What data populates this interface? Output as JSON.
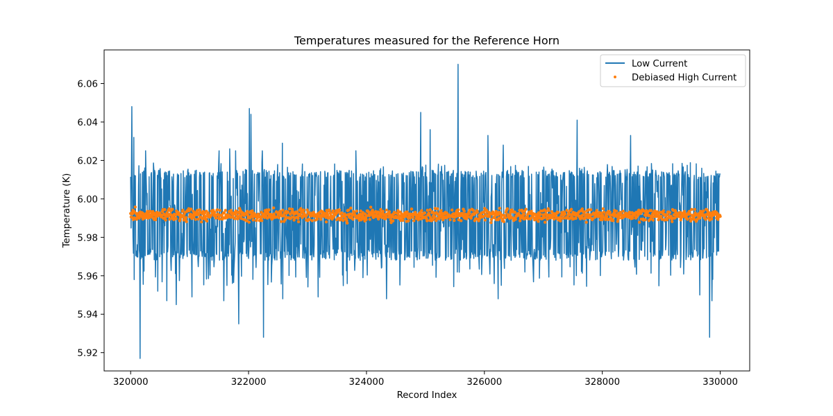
{
  "chart_data": {
    "type": "line",
    "title": "Temperatures measured for the Reference Horn",
    "xlabel": "Record Index",
    "ylabel": "Temperature (K)",
    "xlim": [
      319550,
      330500
    ],
    "ylim": [
      5.9105,
      6.0775
    ],
    "x_ticks": [
      320000,
      322000,
      324000,
      326000,
      328000,
      330000
    ],
    "x_tick_labels": [
      "320000",
      "322000",
      "324000",
      "326000",
      "328000",
      "330000"
    ],
    "y_ticks": [
      5.92,
      5.94,
      5.96,
      5.98,
      6.0,
      6.02,
      6.04,
      6.06
    ],
    "y_tick_labels": [
      "5.92",
      "5.94",
      "5.96",
      "5.98",
      "6.00",
      "6.02",
      "6.04",
      "6.06"
    ],
    "grid": false,
    "legend": {
      "position": "top-right",
      "entries": [
        "Low Current",
        "Debiased High Current"
      ]
    },
    "series": [
      {
        "name": "Low Current",
        "style": "line",
        "color": "#1f77b4",
        "x_range": [
          320000,
          330000
        ],
        "mean": 5.9995,
        "typical_range": [
          5.968,
          6.015
        ],
        "spikes": [
          {
            "x": 320020,
            "y": 6.048
          },
          {
            "x": 320050,
            "y": 6.032
          },
          {
            "x": 320250,
            "y": 6.025
          },
          {
            "x": 321500,
            "y": 6.025
          },
          {
            "x": 321680,
            "y": 6.026
          },
          {
            "x": 321780,
            "y": 6.025
          },
          {
            "x": 322010,
            "y": 6.047
          },
          {
            "x": 322040,
            "y": 6.044
          },
          {
            "x": 322230,
            "y": 6.025
          },
          {
            "x": 322570,
            "y": 6.029
          },
          {
            "x": 323820,
            "y": 6.025
          },
          {
            "x": 324920,
            "y": 6.045
          },
          {
            "x": 325080,
            "y": 6.036
          },
          {
            "x": 325550,
            "y": 6.07
          },
          {
            "x": 326060,
            "y": 6.033
          },
          {
            "x": 326320,
            "y": 6.028
          },
          {
            "x": 327570,
            "y": 6.041
          },
          {
            "x": 328480,
            "y": 6.033
          },
          {
            "x": 320060,
            "y": 5.958
          },
          {
            "x": 320160,
            "y": 5.917
          },
          {
            "x": 320460,
            "y": 5.952
          },
          {
            "x": 320610,
            "y": 5.947
          },
          {
            "x": 320770,
            "y": 5.945
          },
          {
            "x": 321040,
            "y": 5.949
          },
          {
            "x": 321580,
            "y": 5.947
          },
          {
            "x": 321830,
            "y": 5.935
          },
          {
            "x": 322250,
            "y": 5.928
          },
          {
            "x": 322580,
            "y": 5.948
          },
          {
            "x": 323180,
            "y": 5.949
          },
          {
            "x": 324340,
            "y": 5.948
          },
          {
            "x": 326230,
            "y": 5.948
          },
          {
            "x": 329650,
            "y": 5.95
          },
          {
            "x": 329820,
            "y": 5.928
          },
          {
            "x": 329860,
            "y": 5.947
          }
        ]
      },
      {
        "name": "Debiased High Current",
        "style": "scatter",
        "color": "#ff7f0e",
        "x_range": [
          320000,
          330000
        ],
        "mean": 5.9915,
        "typical_range": [
          5.989,
          5.994
        ]
      }
    ]
  }
}
